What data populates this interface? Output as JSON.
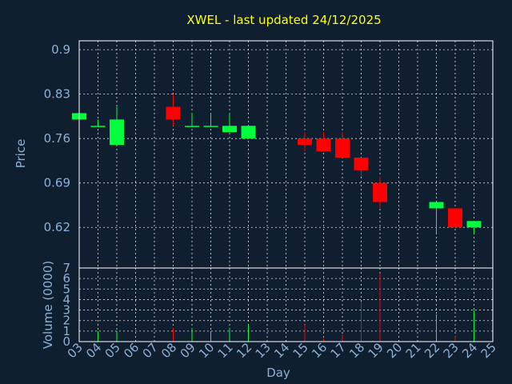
{
  "chart_data": {
    "type": "candlestick",
    "title": "XWEL - last updated 24/12/2025",
    "colors": {
      "up": "#00ff3c",
      "down": "#ff0000",
      "background": "#0f1f30",
      "text": "#8eb0d8",
      "title": "#ffff00",
      "grid": "#ffffff"
    },
    "grid": true,
    "price_panel": {
      "ylabel": "Price",
      "ylim": [
        0.556,
        0.914
      ],
      "yticks": [
        "0.9",
        "0.83",
        "0.76",
        "0.69",
        "0.62"
      ],
      "ytick_values": [
        0.9,
        0.83,
        0.76,
        0.69,
        0.62
      ]
    },
    "volume_panel": {
      "ylabel": "Volume (0000)",
      "ylim": [
        0,
        7
      ],
      "yticks": [
        "0",
        "1",
        "2",
        "3",
        "4",
        "5",
        "6",
        "7"
      ],
      "ytick_values": [
        0,
        1,
        2,
        3,
        4,
        5,
        6,
        7
      ]
    },
    "xlabel": "Day",
    "xlim": [
      3,
      25
    ],
    "xticks": [
      "03",
      "04",
      "05",
      "06",
      "07",
      "08",
      "09",
      "10",
      "11",
      "12",
      "13",
      "14",
      "15",
      "16",
      "17",
      "18",
      "19",
      "20",
      "21",
      "22",
      "23",
      "24",
      "25"
    ],
    "xtick_values": [
      3,
      4,
      5,
      6,
      7,
      8,
      9,
      10,
      11,
      12,
      13,
      14,
      15,
      16,
      17,
      18,
      19,
      20,
      21,
      22,
      23,
      24,
      25
    ],
    "candles": [
      {
        "day": 3,
        "open": 0.79,
        "high": 0.8,
        "low": 0.79,
        "close": 0.8,
        "volume": 0.3
      },
      {
        "day": 4,
        "open": 0.78,
        "high": 0.79,
        "low": 0.78,
        "close": 0.78,
        "volume": 1.0
      },
      {
        "day": 5,
        "open": 0.75,
        "high": 0.81,
        "low": 0.75,
        "close": 0.79,
        "volume": 1.0
      },
      {
        "day": 8,
        "open": 0.81,
        "high": 0.83,
        "low": 0.78,
        "close": 0.79,
        "volume": 1.3
      },
      {
        "day": 9,
        "open": 0.78,
        "high": 0.8,
        "low": 0.78,
        "close": 0.78,
        "volume": 1.3
      },
      {
        "day": 10,
        "open": 0.78,
        "high": 0.8,
        "low": 0.78,
        "close": 0.78,
        "volume": 1.0
      },
      {
        "day": 11,
        "open": 0.77,
        "high": 0.8,
        "low": 0.77,
        "close": 0.78,
        "volume": 1.3
      },
      {
        "day": 12,
        "open": 0.76,
        "high": 0.78,
        "low": 0.76,
        "close": 0.78,
        "volume": 1.6
      },
      {
        "day": 15,
        "open": 0.76,
        "high": 0.77,
        "low": 0.74,
        "close": 0.75,
        "volume": 1.6
      },
      {
        "day": 16,
        "open": 0.76,
        "high": 0.77,
        "low": 0.74,
        "close": 0.74,
        "volume": 0.3
      },
      {
        "day": 17,
        "open": 0.76,
        "high": 0.77,
        "low": 0.73,
        "close": 0.73,
        "volume": 0.7
      },
      {
        "day": 18,
        "open": 0.73,
        "high": 0.73,
        "low": 0.7,
        "close": 0.71,
        "volume": 3.8
      },
      {
        "day": 19,
        "open": 0.69,
        "high": 0.7,
        "low": 0.65,
        "close": 0.66,
        "volume": 6.5
      },
      {
        "day": 22,
        "open": 0.65,
        "high": 0.66,
        "low": 0.61,
        "close": 0.66,
        "volume": 2.6
      },
      {
        "day": 23,
        "open": 0.65,
        "high": 0.65,
        "low": 0.62,
        "close": 0.62,
        "volume": 0.5
      },
      {
        "day": 24,
        "open": 0.62,
        "high": 0.63,
        "low": 0.61,
        "close": 0.63,
        "volume": 3.0
      }
    ]
  }
}
